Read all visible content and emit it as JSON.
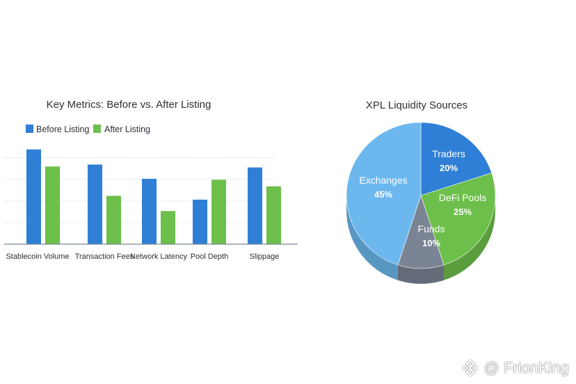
{
  "chart_data": [
    {
      "type": "bar",
      "title": "Key Metrics: Before vs. After Listing",
      "categories": [
        "Stablecoin Volume",
        "Transaction Fees",
        "Network Latency",
        "Pool Depth",
        "Slippage"
      ],
      "series": [
        {
          "name": "Before Listing",
          "color": "#2f7fd6",
          "values": [
            100,
            84,
            69,
            47,
            81
          ]
        },
        {
          "name": "After Listing",
          "color": "#6cbf4a",
          "values": [
            82,
            51,
            35,
            68,
            61
          ]
        }
      ],
      "ylim": [
        0,
        105
      ],
      "grid": true,
      "legend_position": "top-left"
    },
    {
      "type": "pie",
      "title": "XPL Liquidity Sources",
      "slices": [
        {
          "label": "Traders",
          "pct_label": "20%",
          "value": 20,
          "color": "#2f7fd6"
        },
        {
          "label": "DeFi Pools",
          "pct_label": "25%",
          "value": 25,
          "color": "#6cbf4a"
        },
        {
          "label": "Funds",
          "pct_label": "10%",
          "value": 10,
          "color": "#7b8494"
        },
        {
          "label": "Exchanges",
          "pct_label": "45%",
          "value": 45,
          "color": "#6cb8ee"
        }
      ]
    }
  ],
  "watermark": {
    "text": "@ FrionKing",
    "icon": "binance-logo-icon"
  }
}
